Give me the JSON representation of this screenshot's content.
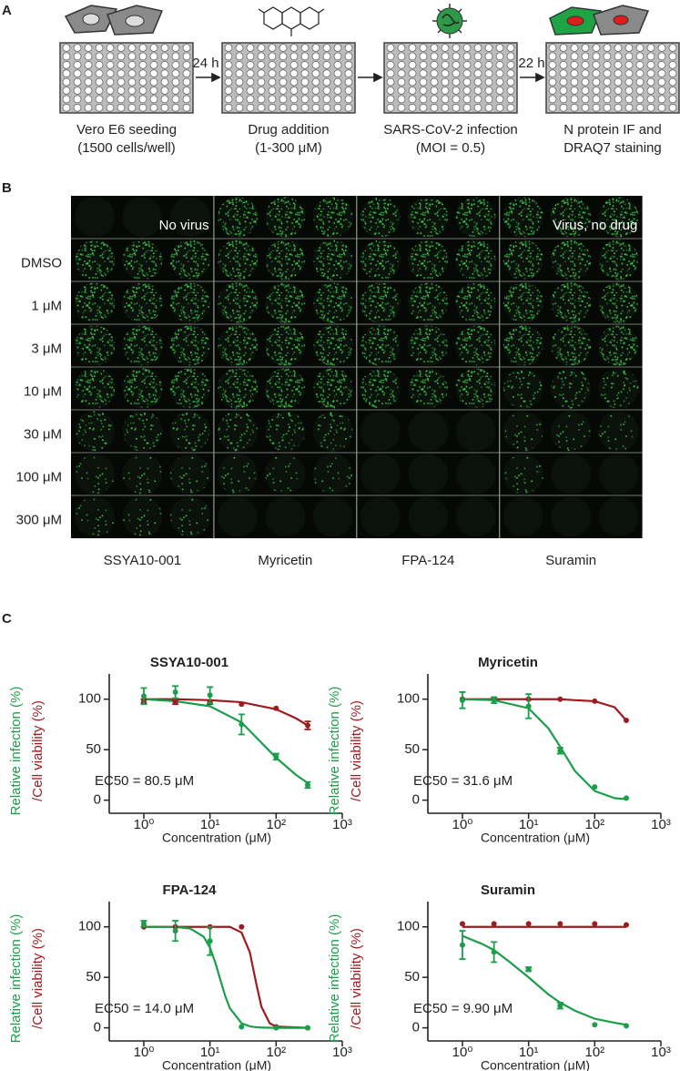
{
  "panel_a": {
    "label": "A",
    "intervals": [
      "24 h",
      "22 h"
    ],
    "steps": [
      [
        "Vero E6 seeding",
        "(1500 cells/well)"
      ],
      [
        "Drug addition",
        "(1-300 μM)"
      ],
      [
        "SARS-CoV-2 infection",
        "(MOI = 0.5)"
      ],
      [
        "N protein IF and",
        "DRAQ7 staining"
      ]
    ]
  },
  "panel_b": {
    "label": "B",
    "header_labels": [
      "No virus",
      "Virus, no drug"
    ],
    "row_labels": [
      "DMSO",
      "1 μM",
      "3 μM",
      "10 μM",
      "30 μM",
      "100 μM",
      "300 μM"
    ],
    "column_groups": [
      "SSYA10-001",
      "Myricetin",
      "FPA-124",
      "Suramin"
    ]
  },
  "panel_c": {
    "label": "C"
  },
  "chart_data": [
    {
      "type": "scatter",
      "title": "SSYA10-001",
      "x_label": "Concentration (μM)",
      "annotation": "EC50 = 80.5 μM",
      "xscale": "log",
      "xlim": [
        0.3,
        1000
      ],
      "xticks": [
        {
          "value": 1,
          "label": "10⁰"
        },
        {
          "value": 10,
          "label": "10¹"
        },
        {
          "value": 100,
          "label": "10²"
        },
        {
          "value": 1000,
          "label": "10³"
        }
      ],
      "ylim": [
        -13,
        125
      ],
      "yticks": [
        0,
        50,
        100
      ],
      "series": [
        {
          "name": "Relative infection (%)",
          "color": "#1a9e4a",
          "x": [
            1,
            3,
            10,
            30,
            100,
            300
          ],
          "values": [
            103,
            107,
            104,
            75,
            43,
            15
          ],
          "errors": [
            8,
            6,
            8,
            10,
            3,
            3
          ],
          "fit_x": [
            1,
            3,
            10,
            30,
            100,
            200,
            300
          ],
          "fit_values": [
            100,
            98,
            93,
            77,
            42,
            25,
            17
          ]
        },
        {
          "name": "/Cell viability (%)",
          "color": "#9e1c20",
          "x": [
            1,
            3,
            10,
            30,
            100,
            300
          ],
          "values": [
            98,
            97,
            97,
            95,
            91,
            74
          ],
          "errors": [
            2,
            2,
            2,
            null,
            null,
            4
          ],
          "fit_x": [
            1,
            3,
            10,
            30,
            100,
            200,
            300
          ],
          "fit_values": [
            100,
            100,
            99,
            97,
            90,
            81,
            74
          ]
        }
      ]
    },
    {
      "type": "scatter",
      "title": "Myricetin",
      "x_label": "Concentration (μM)",
      "annotation": "EC50 = 31.6 μM",
      "xscale": "log",
      "xlim": [
        0.3,
        1000
      ],
      "xticks": [
        {
          "value": 1,
          "label": "10⁰"
        },
        {
          "value": 10,
          "label": "10¹"
        },
        {
          "value": 100,
          "label": "10²"
        },
        {
          "value": 1000,
          "label": "10³"
        }
      ],
      "ylim": [
        -13,
        125
      ],
      "yticks": [
        0,
        50,
        100
      ],
      "series": [
        {
          "name": "Relative infection (%)",
          "color": "#1a9e4a",
          "x": [
            1,
            3,
            10,
            30,
            100,
            300
          ],
          "values": [
            99,
            99,
            93,
            49,
            13,
            2
          ],
          "errors": [
            8,
            3,
            12,
            3,
            null,
            null
          ],
          "fit_x": [
            1,
            3,
            10,
            20,
            30,
            50,
            100,
            200,
            300
          ],
          "fit_values": [
            100,
            99,
            91,
            71,
            53,
            29,
            9,
            2,
            1
          ]
        },
        {
          "name": "/Cell viability (%)",
          "color": "#9e1c20",
          "x": [
            1,
            3,
            10,
            30,
            100,
            300
          ],
          "values": [
            100,
            100,
            100,
            100,
            98,
            79
          ],
          "errors": [
            null,
            null,
            null,
            null,
            null,
            null
          ],
          "fit_x": [
            1,
            3,
            10,
            20,
            30,
            50,
            100,
            200,
            300
          ],
          "fit_values": [
            100,
            100,
            100,
            100,
            100,
            99,
            98,
            92,
            79
          ]
        }
      ]
    },
    {
      "type": "scatter",
      "title": "FPA-124",
      "x_label": "Concentration (μM)",
      "annotation": "EC50 = 14.0 μM",
      "xscale": "log",
      "xlim": [
        0.3,
        1000
      ],
      "xticks": [
        {
          "value": 1,
          "label": "10⁰"
        },
        {
          "value": 10,
          "label": "10¹"
        },
        {
          "value": 100,
          "label": "10²"
        },
        {
          "value": 1000,
          "label": "10³"
        }
      ],
      "ylim": [
        -13,
        125
      ],
      "yticks": [
        0,
        50,
        100
      ],
      "series": [
        {
          "name": "Relative infection (%)",
          "color": "#1a9e4a",
          "x": [
            1,
            3,
            10,
            30,
            100,
            300
          ],
          "values": [
            103,
            96,
            86,
            1,
            0,
            0
          ],
          "errors": [
            3,
            10,
            14,
            null,
            null,
            null
          ],
          "fit_x": [
            1,
            3,
            5,
            8,
            10,
            12,
            14,
            17,
            20,
            30,
            40,
            50,
            60,
            80,
            100,
            300
          ],
          "fit_values": [
            100,
            99.8,
            98.4,
            90.3,
            79.4,
            64.9,
            50,
            31.5,
            19.4,
            4.5,
            1.5,
            0.6,
            0.3,
            0.1,
            0,
            0
          ]
        },
        {
          "name": "/Cell viability (%)",
          "color": "#9e1c20",
          "x": [
            1,
            3,
            10,
            30,
            100,
            300
          ],
          "values": [
            100,
            100,
            100,
            100,
            1,
            0
          ],
          "errors": [
            null,
            null,
            null,
            null,
            null,
            null
          ],
          "fit_x": [
            1,
            3,
            5,
            8,
            10,
            12,
            14,
            17,
            20,
            30,
            40,
            50,
            60,
            80,
            100,
            300
          ],
          "fit_values": [
            100,
            100,
            100,
            100,
            100,
            100,
            100,
            100,
            100,
            94.4,
            74.9,
            44,
            20.8,
            4.5,
            1.2,
            0
          ]
        }
      ]
    },
    {
      "type": "scatter",
      "title": "Suramin",
      "x_label": "Concentration (μM)",
      "annotation": "EC50 = 9.90 μM",
      "xscale": "log",
      "xlim": [
        0.3,
        1000
      ],
      "xticks": [
        {
          "value": 1,
          "label": "10⁰"
        },
        {
          "value": 10,
          "label": "10¹"
        },
        {
          "value": 100,
          "label": "10²"
        },
        {
          "value": 1000,
          "label": "10³"
        }
      ],
      "ylim": [
        -13,
        125
      ],
      "yticks": [
        0,
        50,
        100
      ],
      "series": [
        {
          "name": "Relative infection (%)",
          "color": "#1a9e4a",
          "x": [
            1,
            3,
            10,
            30,
            100,
            300
          ],
          "values": [
            82,
            75,
            58,
            22,
            3,
            2
          ],
          "errors": [
            14,
            10,
            2,
            3,
            null,
            null
          ],
          "fit_x": [
            1,
            2,
            3,
            5,
            10,
            20,
            30,
            50,
            100,
            200,
            300
          ],
          "fit_values": [
            91,
            83,
            77,
            66,
            50,
            33,
            25,
            17,
            9,
            5,
            3
          ]
        },
        {
          "name": "/Cell viability (%)",
          "color": "#9e1c20",
          "x": [
            1,
            3,
            10,
            30,
            100,
            300
          ],
          "values": [
            103,
            103,
            103,
            103,
            103,
            102
          ],
          "errors": [
            null,
            null,
            null,
            null,
            null,
            null
          ],
          "fit_x": [
            1,
            300
          ],
          "fit_values": [
            100,
            100
          ]
        }
      ]
    }
  ]
}
